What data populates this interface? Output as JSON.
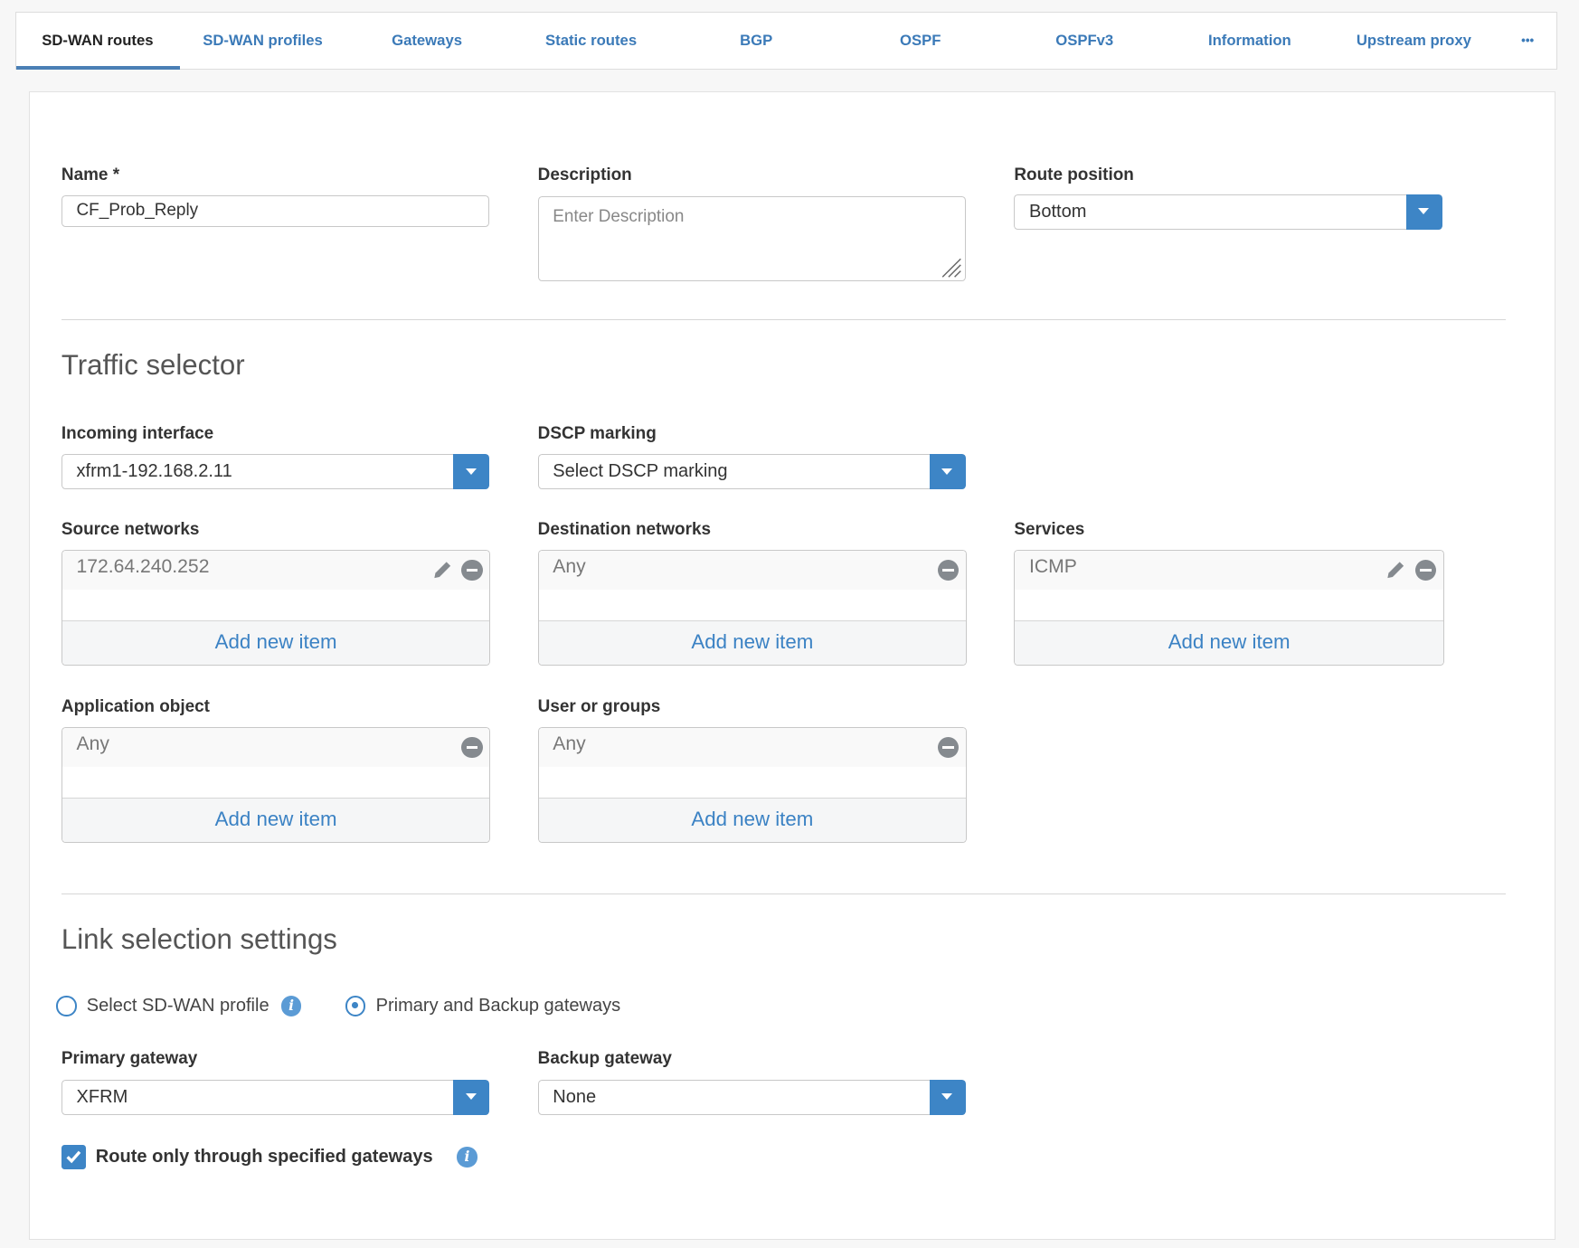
{
  "tabs": [
    {
      "label": "SD-WAN routes",
      "active": true
    },
    {
      "label": "SD-WAN profiles"
    },
    {
      "label": "Gateways"
    },
    {
      "label": "Static routes"
    },
    {
      "label": "BGP"
    },
    {
      "label": "OSPF"
    },
    {
      "label": "OSPFv3"
    },
    {
      "label": "Information"
    },
    {
      "label": "Upstream proxy"
    },
    {
      "label": "•••"
    }
  ],
  "form": {
    "name_label": "Name *",
    "name_value": "CF_Prob_Reply",
    "description_label": "Description",
    "description_placeholder": "Enter Description",
    "route_position_label": "Route position",
    "route_position_value": "Bottom"
  },
  "traffic": {
    "heading": "Traffic selector",
    "incoming_label": "Incoming interface",
    "incoming_value": "xfrm1-192.168.2.11",
    "dscp_label": "DSCP marking",
    "dscp_value": "Select DSCP marking",
    "source_label": "Source networks",
    "source_item": "172.64.240.252",
    "dest_label": "Destination networks",
    "dest_item": "Any",
    "services_label": "Services",
    "services_item": "ICMP",
    "app_label": "Application object",
    "app_item": "Any",
    "users_label": "User or groups",
    "users_item": "Any",
    "add_new": "Add new item"
  },
  "link": {
    "heading": "Link selection settings",
    "radio_profile": "Select SD-WAN profile",
    "radio_gateways": "Primary and Backup gateways",
    "selected": "Primary and Backup gateways",
    "primary_label": "Primary gateway",
    "primary_value": "XFRM",
    "backup_label": "Backup gateway",
    "backup_value": "None",
    "route_only_label": "Route only through specified gateways",
    "route_only_checked": true
  },
  "colors": {
    "accent": "#3d85c6",
    "link": "#3b7ab8"
  }
}
